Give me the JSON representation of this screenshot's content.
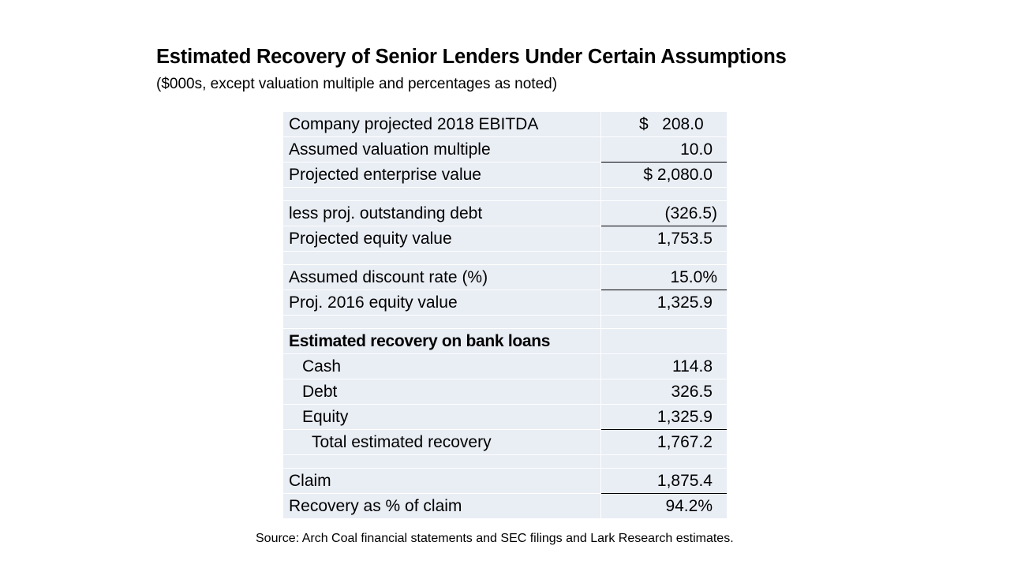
{
  "header": {
    "title": "Estimated Recovery of Senior Lenders Under Certain Assumptions",
    "subtitle": "($000s, except valuation multiple and percentages as noted)"
  },
  "table": {
    "rows": [
      [
        "Company projected 2018 EBITDA",
        "$   208.0"
      ],
      [
        "Assumed valuation multiple",
        "10.0"
      ],
      [
        "Projected enterprise value",
        "$ 2,080.0"
      ],
      [
        "less proj. outstanding debt",
        "(326.5)"
      ],
      [
        "Projected equity value",
        "1,753.5"
      ],
      [
        "Assumed discount rate (%)",
        "15.0%"
      ],
      [
        "Proj. 2016 equity value",
        "1,325.9"
      ],
      [
        "Estimated recovery on bank loans"
      ],
      [
        "Cash",
        "114.8"
      ],
      [
        "Debt",
        "326.5"
      ],
      [
        "Equity",
        "1,325.9"
      ],
      [
        "Total estimated recovery",
        "1,767.2"
      ],
      [
        "Claim",
        "1,875.4"
      ],
      [
        "Recovery as % of claim",
        "94.2%"
      ]
    ]
  },
  "footer": {
    "source": "Source:  Arch Coal financial statements and SEC filings and Lark Research estimates."
  }
}
